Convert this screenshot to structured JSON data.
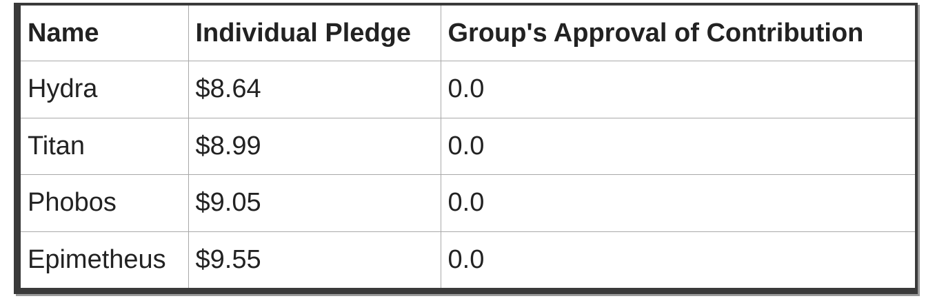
{
  "table": {
    "headers": [
      "Name",
      "Individual Pledge",
      "Group's Approval of Contribution"
    ],
    "rows": [
      [
        "Hydra",
        "$8.64",
        "0.0"
      ],
      [
        "Titan",
        "$8.99",
        "0.0"
      ],
      [
        "Phobos",
        "$9.05",
        "0.0"
      ],
      [
        "Epimetheus",
        "$9.55",
        "0.0"
      ]
    ]
  }
}
